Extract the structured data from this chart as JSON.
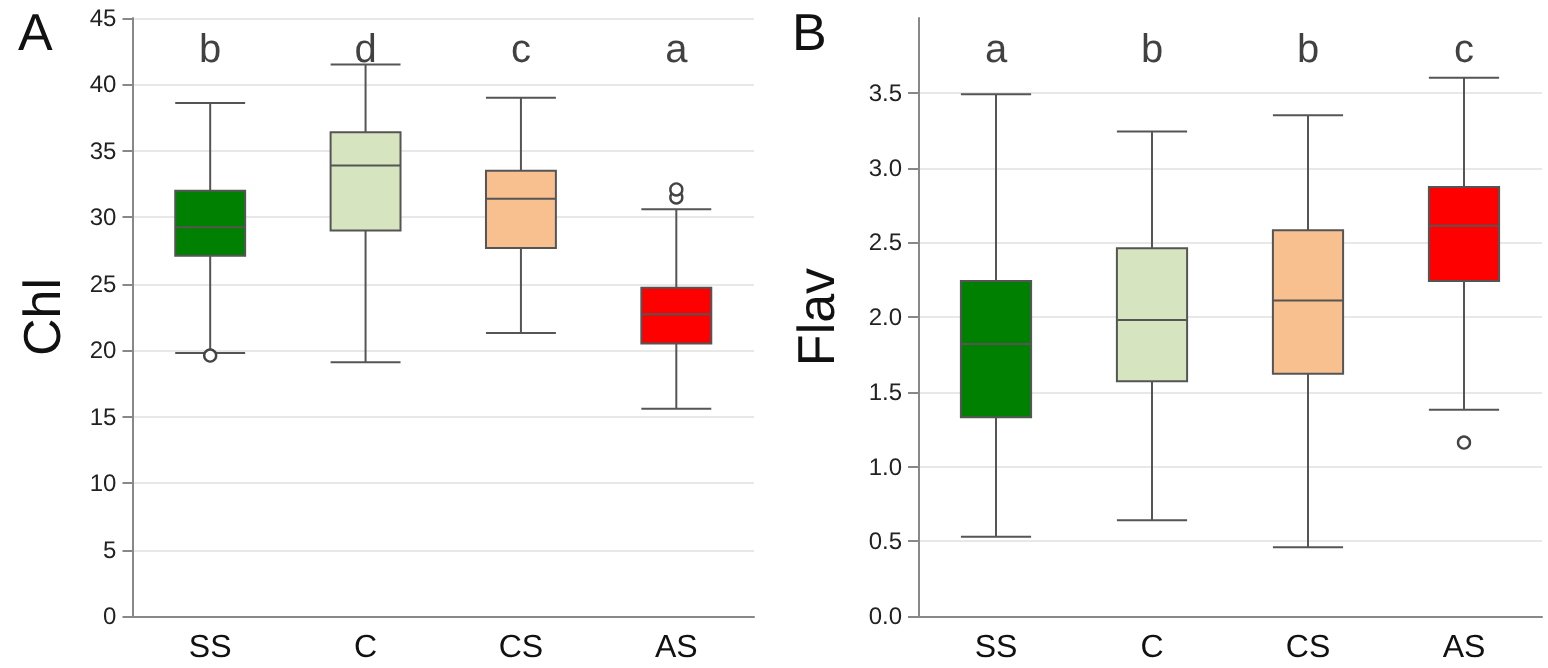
{
  "chart_data": [
    {
      "type": "box",
      "title": "A",
      "ylabel": "Chl",
      "categories": [
        "SS",
        "C",
        "CS",
        "AS"
      ],
      "colors": [
        "#008000",
        "#d6e4bf",
        "#f9c08f",
        "#ff0000"
      ],
      "boxes": [
        {
          "low": 19.8,
          "q1": 27.1,
          "median": 29.25,
          "q3": 32.0,
          "high": 38.6,
          "outliers": [
            19.6
          ]
        },
        {
          "low": 19.1,
          "q1": 29.0,
          "median": 33.9,
          "q3": 36.4,
          "high": 41.5
        },
        {
          "low": 21.3,
          "q1": 27.7,
          "median": 31.4,
          "q3": 33.5,
          "high": 39.0
        },
        {
          "low": 15.6,
          "q1": 20.5,
          "median": 22.7,
          "q3": 24.7,
          "high": 30.6,
          "outliers": [
            31.5,
            32.1
          ]
        }
      ],
      "ylim": [
        0,
        45
      ],
      "yticks": [
        0,
        5,
        10,
        15,
        20,
        25,
        30,
        35,
        40,
        45
      ],
      "grid": "y",
      "annotations": [
        "b",
        "d",
        "c",
        "a"
      ]
    },
    {
      "type": "box",
      "title": "B",
      "ylabel": "Flav",
      "categories": [
        "SS",
        "C",
        "CS",
        "AS"
      ],
      "colors": [
        "#008000",
        "#d6e4bf",
        "#f9c08f",
        "#ff0000"
      ],
      "boxes": [
        {
          "low": 0.53,
          "q1": 1.33,
          "median": 1.82,
          "q3": 2.24,
          "high": 3.49
        },
        {
          "low": 0.64,
          "q1": 1.57,
          "median": 1.98,
          "q3": 2.46,
          "high": 3.24
        },
        {
          "low": 0.46,
          "q1": 1.62,
          "median": 2.11,
          "q3": 2.58,
          "high": 3.35
        },
        {
          "low": 1.38,
          "q1": 2.24,
          "median": 2.61,
          "q3": 2.87,
          "high": 3.6,
          "outliers": [
            1.16
          ]
        }
      ],
      "ylim": [
        0,
        4
      ],
      "yticks": [
        {
          "value": 0,
          "label": "0.0"
        },
        {
          "value": 0.5,
          "label": "0.5"
        },
        {
          "value": 1,
          "label": "1.0"
        },
        {
          "value": 1.5,
          "label": "1.5"
        },
        {
          "value": 2,
          "label": "2.0"
        },
        {
          "value": 2.5,
          "label": "2.5"
        },
        {
          "value": 3,
          "label": "3.0"
        },
        {
          "value": 3.5,
          "label": "3.5"
        }
      ],
      "grid": "y",
      "annotations": [
        "a",
        "b",
        "b",
        "c"
      ]
    }
  ]
}
